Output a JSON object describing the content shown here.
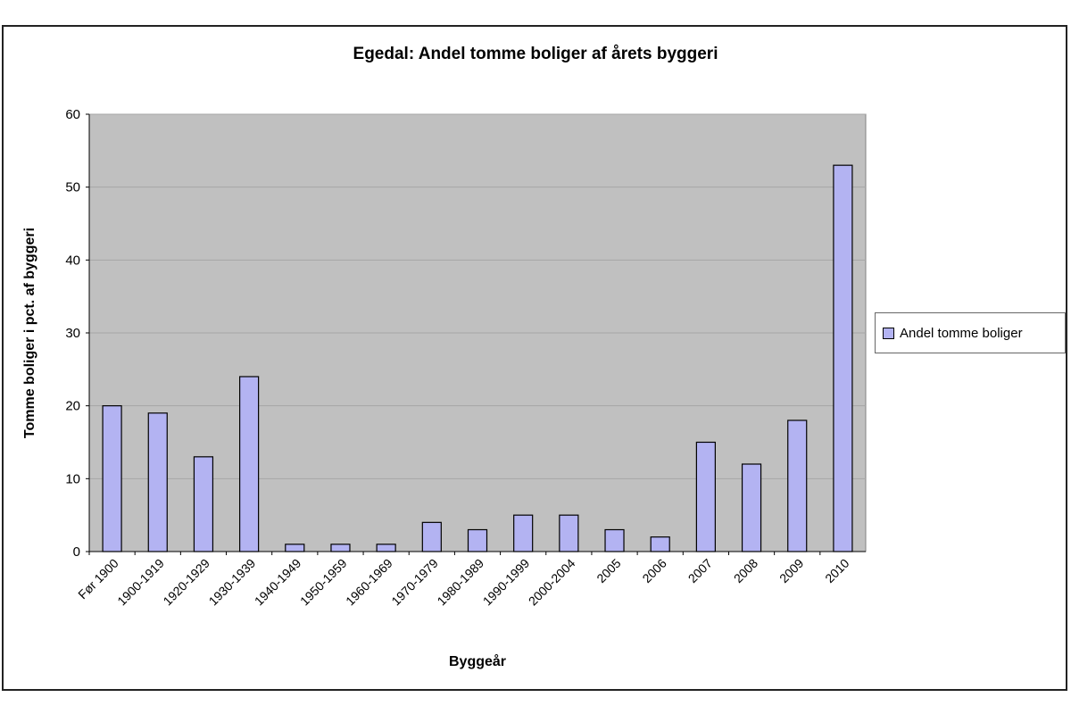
{
  "chart_data": {
    "type": "bar",
    "title": "Egedal: Andel tomme boliger af årets byggeri",
    "xlabel": "Byggeår",
    "ylabel": "Tomme boliger i pct. af byggeri",
    "ylim": [
      0,
      60
    ],
    "yticks": [
      0,
      10,
      20,
      30,
      40,
      50,
      60
    ],
    "grid": true,
    "legend_position": "right",
    "bar_color": "#b3b3f2",
    "plot_bg": "#c0c0c0",
    "categories": [
      "Før 1900",
      "1900-1919",
      "1920-1929",
      "1930-1939",
      "1940-1949",
      "1950-1959",
      "1960-1969",
      "1970-1979",
      "1980-1989",
      "1990-1999",
      "2000-2004",
      "2005",
      "2006",
      "2007",
      "2008",
      "2009",
      "2010"
    ],
    "series": [
      {
        "name": "Andel tomme boliger",
        "values": [
          20,
          19,
          13,
          24,
          1,
          1,
          1,
          4,
          3,
          5,
          5,
          3,
          2,
          15,
          12,
          18,
          53
        ]
      }
    ]
  }
}
